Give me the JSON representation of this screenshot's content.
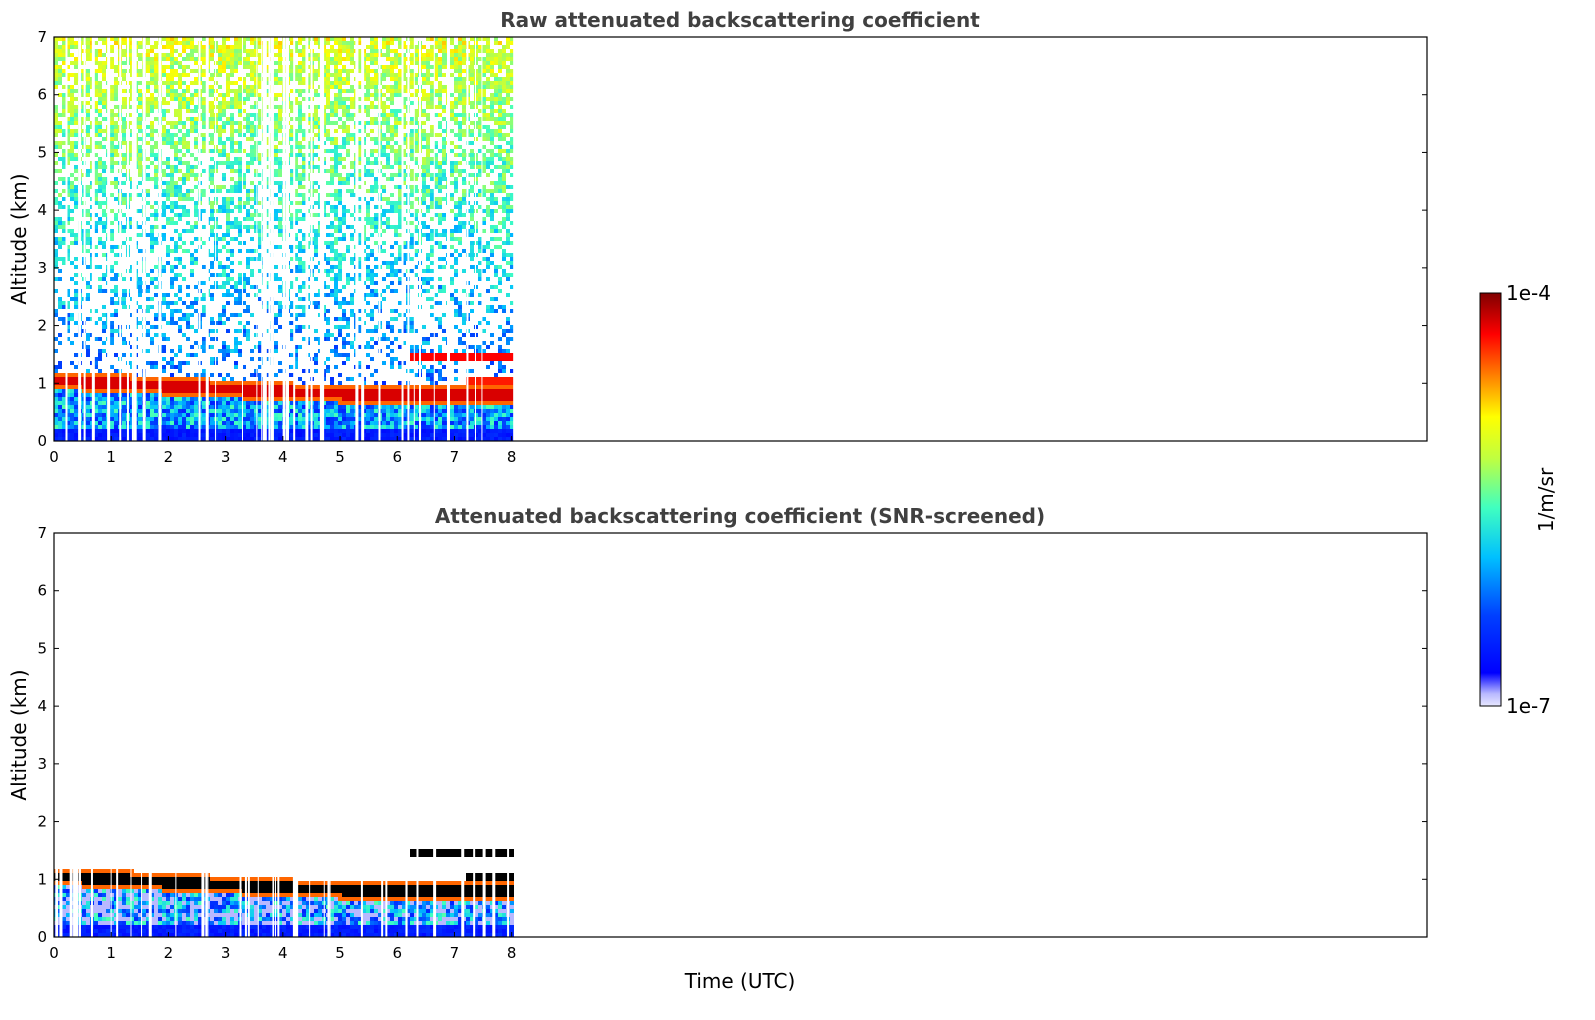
{
  "chart_data": [
    {
      "type": "heatmap",
      "title": "Raw attenuated backscattering coefficient",
      "xlabel": "",
      "ylabel": "Altitude (km)",
      "xlim": [
        0,
        24
      ],
      "ylim": [
        0,
        7
      ],
      "xticks": [
        "0",
        "1",
        "2",
        "3",
        "4",
        "5",
        "6",
        "7",
        "8"
      ],
      "yticks": [
        "0",
        "1",
        "2",
        "3",
        "4",
        "5",
        "6",
        "7"
      ],
      "data_extent_hours": [
        0,
        8.1
      ],
      "features": {
        "cloud_layer_km": [
          [
            0,
            1.05
          ],
          [
            2,
            0.95
          ],
          [
            4,
            0.85
          ],
          [
            5.5,
            0.8
          ],
          [
            6.6,
            0.8
          ]
        ],
        "upper_layer_km": {
          "start_h": 6.2,
          "end_h": 8.1,
          "alt": 1.45
        },
        "secondary_layer_km": {
          "start_h": 7.2,
          "end_h": 8.1,
          "alt": 1.05
        },
        "noise_top_km": 7
      }
    },
    {
      "type": "heatmap",
      "title": "Attenuated backscattering coefficient (SNR-screened)",
      "xlabel": "Time (UTC)",
      "ylabel": "Altitude (km)",
      "xlim": [
        0,
        24
      ],
      "ylim": [
        0,
        7
      ],
      "xticks": [
        "0",
        "1",
        "2",
        "3",
        "4",
        "5",
        "6",
        "7",
        "8"
      ],
      "yticks": [
        "0",
        "1",
        "2",
        "3",
        "4",
        "5",
        "6",
        "7"
      ],
      "data_extent_hours": [
        0,
        8.1
      ],
      "features": {
        "cloud_layer_km": [
          [
            0,
            1.05
          ],
          [
            2,
            0.95
          ],
          [
            4,
            0.85
          ],
          [
            5.5,
            0.8
          ],
          [
            6.6,
            0.8
          ]
        ],
        "upper_layer_km": {
          "start_h": 6.2,
          "end_h": 8.1,
          "alt": 1.45
        },
        "secondary_layer_km": {
          "start_h": 7.2,
          "end_h": 8.1,
          "alt": 1.05
        }
      }
    }
  ],
  "colorbar": {
    "label": "1/m/sr",
    "min_label": "1e-7",
    "max_label": "1e-4",
    "min_value": 1e-07,
    "max_value": 0.0001,
    "scale": "log",
    "colormap": "jet"
  },
  "colors": {
    "title": "#404040",
    "cloud_core": "#000000",
    "background": "#ffffff"
  }
}
